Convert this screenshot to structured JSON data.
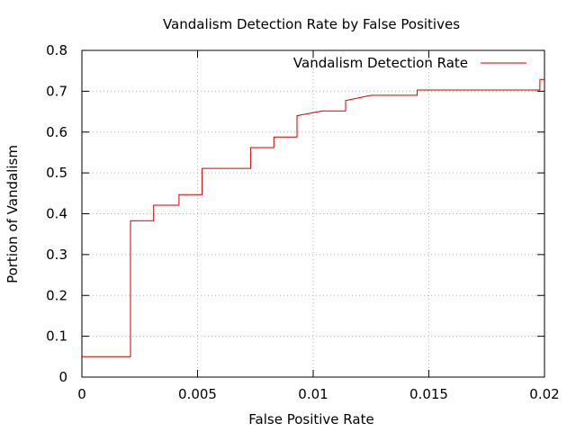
{
  "chart_data": {
    "type": "line",
    "title": "Vandalism Detection Rate by False Positives",
    "xlabel": "False Positive Rate",
    "ylabel": "Portion of Vandalism",
    "xlim": [
      0,
      0.02
    ],
    "ylim": [
      0,
      0.8
    ],
    "grid": true,
    "legend_position": "top-right",
    "x_ticks": [
      {
        "value": 0,
        "label": "0"
      },
      {
        "value": 0.005,
        "label": "0.005"
      },
      {
        "value": 0.01,
        "label": "0.01"
      },
      {
        "value": 0.015,
        "label": "0.015"
      },
      {
        "value": 0.02,
        "label": "0.02"
      }
    ],
    "y_ticks": [
      {
        "value": 0,
        "label": "0"
      },
      {
        "value": 0.1,
        "label": "0.1"
      },
      {
        "value": 0.2,
        "label": "0.2"
      },
      {
        "value": 0.3,
        "label": "0.3"
      },
      {
        "value": 0.4,
        "label": "0.4"
      },
      {
        "value": 0.5,
        "label": "0.5"
      },
      {
        "value": 0.6,
        "label": "0.6"
      },
      {
        "value": 0.7,
        "label": "0.7"
      },
      {
        "value": 0.8,
        "label": "0.8"
      }
    ],
    "series": [
      {
        "name": "Vandalism Detection Rate",
        "color": "#cc0000",
        "x": [
          0,
          0.0021,
          0.0021,
          0.0031,
          0.0031,
          0.0042,
          0.0042,
          0.0052,
          0.0052,
          0.0073,
          0.0073,
          0.0083,
          0.0083,
          0.0093,
          0.0093,
          0.0104,
          0.0104,
          0.0114,
          0.0114,
          0.0125,
          0.0145,
          0.0145,
          0.0198,
          0.0198,
          0.02
        ],
        "y": [
          0.05,
          0.05,
          0.383,
          0.383,
          0.421,
          0.421,
          0.447,
          0.447,
          0.511,
          0.511,
          0.562,
          0.562,
          0.588,
          0.588,
          0.64,
          0.652,
          0.652,
          0.652,
          0.677,
          0.69,
          0.69,
          0.703,
          0.703,
          0.729,
          0.729
        ]
      }
    ]
  }
}
